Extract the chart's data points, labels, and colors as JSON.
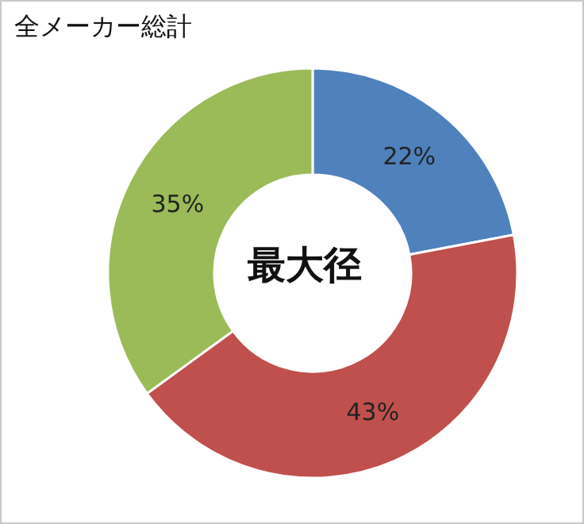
{
  "chart_data": {
    "type": "donut",
    "title": "全メーカー総計",
    "categories": [
      null,
      null,
      null
    ],
    "values": [
      22,
      43,
      35
    ],
    "value_labels": [
      "22%",
      "43%",
      "35%"
    ],
    "colors": [
      "#4f81bd",
      "#c0504d",
      "#9bbb59"
    ],
    "annotations": [
      "最大径"
    ]
  }
}
